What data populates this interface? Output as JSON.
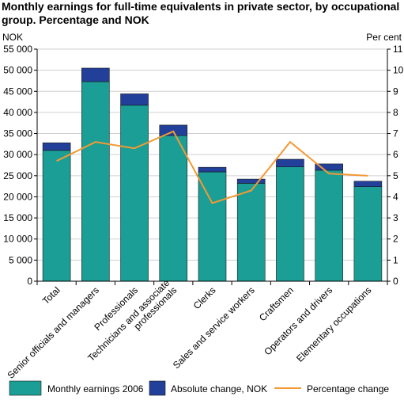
{
  "title": "Monthly earnings for full-time equivalents in private sector, by occupational group. Percentage and NOK",
  "chart_data": {
    "type": "bar",
    "stacked": true,
    "title": "Monthly earnings for full-time equivalents in private sector, by occupational group. Percentage and NOK",
    "ylabel_left": "NOK",
    "ylabel_right": "Per cent",
    "ylim_left": [
      0,
      55000
    ],
    "ylim_right": [
      0,
      11
    ],
    "yticks_left": [
      "0",
      "5 000",
      "10 000",
      "15 000",
      "20 000",
      "25 000",
      "30 000",
      "35 000",
      "40 000",
      "45 000",
      "50 000",
      "55 000"
    ],
    "yticks_right": [
      "0",
      "1",
      "2",
      "3",
      "4",
      "5",
      "6",
      "7",
      "8",
      "9",
      "10",
      "11"
    ],
    "categories": [
      "Total",
      "Senior officials and managers",
      "Professionals",
      "Technicians and associate professionals",
      "Clerks",
      "Sales and service workers",
      "Craftsmen",
      "Operators and drivers",
      "Elementary occupations"
    ],
    "category_lines": [
      [
        "Total"
      ],
      [
        "Senior officials and managers"
      ],
      [
        "Professionals"
      ],
      [
        "Technicians and associate",
        "professionals"
      ],
      [
        "Clerks"
      ],
      [
        "Sales and service workers"
      ],
      [
        "Craftsmen"
      ],
      [
        "Operators and drivers"
      ],
      [
        "Elementary occupations"
      ]
    ],
    "series": [
      {
        "name": "Monthly earnings 2006",
        "axis": "left",
        "kind": "bar",
        "color": "#1a9e96",
        "values": [
          31000,
          47300,
          41700,
          34500,
          25900,
          23200,
          27100,
          26300,
          22400
        ]
      },
      {
        "name": "Absolute change, NOK",
        "axis": "left",
        "kind": "bar",
        "color": "#22409a",
        "values": [
          1800,
          3200,
          2700,
          2500,
          1100,
          1000,
          1800,
          1500,
          1300
        ]
      },
      {
        "name": "Percentage change",
        "axis": "right",
        "kind": "line",
        "color": "#f39a34",
        "values": [
          5.7,
          6.6,
          6.3,
          7.1,
          3.7,
          4.3,
          6.6,
          5.1,
          5.0
        ]
      }
    ],
    "grid": true,
    "legend": "bottom"
  }
}
